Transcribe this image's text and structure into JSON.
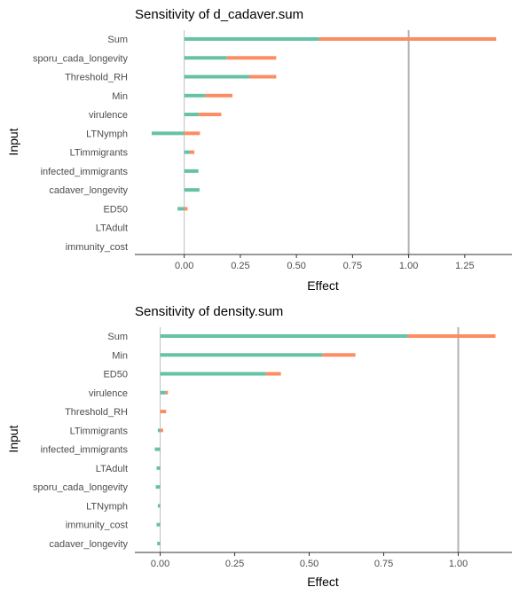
{
  "colors": {
    "main_effect": "#66c2a5",
    "interaction": "#fc8d62",
    "zero_line": "#bebebe",
    "ref_line": "#b3b3b3",
    "axis": "#333333"
  },
  "chart_data": [
    {
      "type": "bar",
      "orientation": "horizontal",
      "stacked": true,
      "title": "Sensitivity of d_cadaver.sum",
      "xlabel": "Effect",
      "ylabel": "Input",
      "xlim": [
        -0.22,
        1.46
      ],
      "xticks": [
        0,
        0.25,
        0.5,
        0.75,
        1,
        1.25
      ],
      "xtick_labels": [
        "0.00",
        "0.25",
        "0.50",
        "0.75",
        "1.00",
        "1.25"
      ],
      "ref_line_x": 1,
      "grid": false,
      "legend": "none",
      "categories": [
        "Sum",
        "sporu_cada_longevity",
        "Threshold_RH",
        "Min",
        "virulence",
        "LTNymph",
        "LTimmigrants",
        "infected_immigrants",
        "cadaver_longevity",
        "ED50",
        "LTAdult",
        "immunity_cost"
      ],
      "series": [
        {
          "color": "#66c2a5",
          "values": [
            0.6,
            0.19,
            0.29,
            0.095,
            0.065,
            -0.145,
            0.025,
            0.063,
            0.068,
            -0.03,
            0.0,
            0.0
          ]
        },
        {
          "color": "#fc8d62",
          "values": [
            0.79,
            0.22,
            0.12,
            0.12,
            0.1,
            0.07,
            0.02,
            0.0,
            0.0,
            0.015,
            0.0,
            0.0
          ]
        }
      ]
    },
    {
      "type": "bar",
      "orientation": "horizontal",
      "stacked": true,
      "title": "Sensitivity of density.sum",
      "xlabel": "Effect",
      "ylabel": "Input",
      "xlim": [
        -0.085,
        1.18
      ],
      "xticks": [
        0,
        0.25,
        0.5,
        0.75,
        1
      ],
      "xtick_labels": [
        "0.00",
        "0.25",
        "0.50",
        "0.75",
        "1.00"
      ],
      "ref_line_x": 1,
      "grid": false,
      "legend": "none",
      "categories": [
        "Sum",
        "Min",
        "ED50",
        "virulence",
        "Threshold_RH",
        "LTimmigrants",
        "infected_immigrants",
        "LTAdult",
        "sporu_cada_longevity",
        "LTNymph",
        "immunity_cost",
        "cadaver_longevity"
      ],
      "series": [
        {
          "color": "#66c2a5",
          "values": [
            0.83,
            0.545,
            0.355,
            0.018,
            0.0,
            -0.008,
            -0.018,
            -0.012,
            -0.015,
            -0.008,
            -0.012,
            -0.01
          ]
        },
        {
          "color": "#fc8d62",
          "values": [
            0.295,
            0.11,
            0.05,
            0.008,
            0.02,
            0.01,
            0.0,
            0.0,
            0.0,
            0.0,
            0.0,
            0.0
          ]
        }
      ]
    }
  ]
}
